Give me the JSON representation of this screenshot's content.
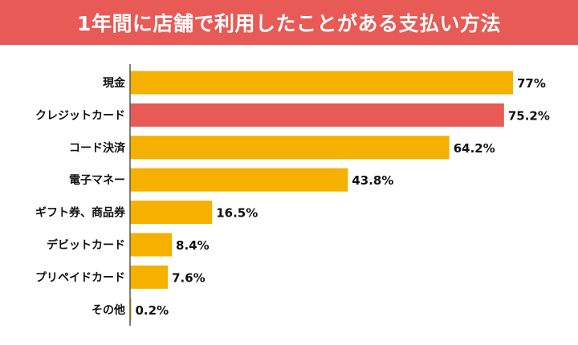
{
  "chart_data": {
    "type": "bar",
    "orientation": "horizontal",
    "title": "1年間に店舗で利用したことがある支払い方法",
    "categories": [
      "現金",
      "クレジットカード",
      "コード決済",
      "電子マネー",
      "ギフト券、商品券",
      "デビットカード",
      "プリペイドカード",
      "その他"
    ],
    "values": [
      77,
      75.2,
      64.2,
      43.8,
      16.5,
      8.4,
      7.6,
      0.2
    ],
    "value_labels": [
      "77%",
      "75.2%",
      "64.2%",
      "43.8%",
      "16.5%",
      "8.4%",
      "7.6%",
      "0.2%"
    ],
    "highlight_index": 1,
    "xlabel": "",
    "ylabel": "",
    "xlim": [
      0,
      100
    ],
    "grid": false,
    "colors": {
      "bar": "#F5B000",
      "highlight": "#E85A55",
      "header": "#E85A55",
      "axis": "#555555"
    }
  }
}
